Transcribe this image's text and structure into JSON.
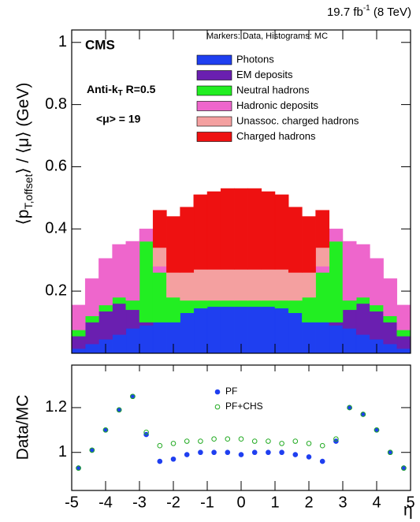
{
  "chart_data": [
    {
      "type": "bar",
      "stacked": true,
      "lumi": "19.7 fb",
      "lumi_exp": "-1",
      "energy": " (8 TeV)",
      "experiment": "CMS",
      "note": "Markers: Data, Histograms: MC",
      "algo": "Anti-k",
      "algo_sub": "T",
      "algo_param": " R=0.5",
      "pileup": "<μ> = 19",
      "ylabel_main": "⟨p",
      "ylabel_sub": "T,offset",
      "ylabel_rest": "⟩ / ⟨μ⟩ (GeV)",
      "x": [
        -4.8,
        -4.4,
        -4.0,
        -3.6,
        -3.2,
        -2.8,
        -2.4,
        -2.0,
        -1.6,
        -1.2,
        -0.8,
        -0.4,
        0,
        0.4,
        0.8,
        1.2,
        1.6,
        2.0,
        2.4,
        2.8,
        3.2,
        3.6,
        4.0,
        4.4,
        4.8
      ],
      "xlim": [
        -5,
        5
      ],
      "ylim": [
        0,
        1.04
      ],
      "yticks": [
        0.2,
        0.4,
        0.6,
        0.8,
        1
      ],
      "series": [
        {
          "name": "Photons",
          "color": "#1f3ff0",
          "values": [
            0.015,
            0.03,
            0.045,
            0.06,
            0.08,
            0.09,
            0.1,
            0.1,
            0.13,
            0.145,
            0.15,
            0.15,
            0.15,
            0.15,
            0.15,
            0.145,
            0.13,
            0.1,
            0.1,
            0.09,
            0.08,
            0.06,
            0.045,
            0.03,
            0.015
          ]
        },
        {
          "name": "EM deposits",
          "color": "#6a1fb0",
          "values": [
            0.04,
            0.07,
            0.09,
            0.1,
            0.06,
            0.01,
            0,
            0,
            0,
            0,
            0,
            0,
            0,
            0,
            0,
            0,
            0,
            0,
            0,
            0.01,
            0.06,
            0.1,
            0.09,
            0.07,
            0.04
          ]
        },
        {
          "name": "Neutral hadrons",
          "color": "#22ee22",
          "values": [
            0.02,
            0.02,
            0.02,
            0.02,
            0.03,
            0.26,
            0.16,
            0.08,
            0.04,
            0.025,
            0.02,
            0.02,
            0.02,
            0.02,
            0.02,
            0.025,
            0.04,
            0.08,
            0.16,
            0.26,
            0.03,
            0.02,
            0.02,
            0.02,
            0.02
          ]
        },
        {
          "name": "Hadronic deposits",
          "color": "#ee66cc",
          "values": [
            0.08,
            0.12,
            0.15,
            0.17,
            0.19,
            0.04,
            0.02,
            0,
            0,
            0,
            0,
            0,
            0,
            0,
            0,
            0,
            0,
            0,
            0.02,
            0.04,
            0.19,
            0.17,
            0.15,
            0.12,
            0.08
          ]
        },
        {
          "name": "Unassoc. charged hadrons",
          "color": "#f4a0a0",
          "values": [
            0,
            0,
            0,
            0,
            0,
            0,
            0.06,
            0.08,
            0.09,
            0.1,
            0.1,
            0.1,
            0.1,
            0.1,
            0.1,
            0.1,
            0.09,
            0.08,
            0.06,
            0,
            0,
            0,
            0,
            0,
            0
          ]
        },
        {
          "name": "Charged hadrons",
          "color": "#ee1111",
          "values": [
            0,
            0,
            0,
            0,
            0,
            0,
            0.12,
            0.18,
            0.21,
            0.24,
            0.25,
            0.26,
            0.26,
            0.26,
            0.25,
            0.24,
            0.21,
            0.18,
            0.12,
            0,
            0,
            0,
            0,
            0,
            0
          ]
        }
      ]
    },
    {
      "type": "scatter",
      "ylabel": "Data/MC",
      "xlabel": "η",
      "x": [
        -4.8,
        -4.4,
        -4.0,
        -3.6,
        -3.2,
        -2.8,
        -2.4,
        -2.0,
        -1.6,
        -1.2,
        -0.8,
        -0.4,
        0,
        0.4,
        0.8,
        1.2,
        1.6,
        2.0,
        2.4,
        2.8,
        3.2,
        3.6,
        4.0,
        4.4,
        4.8
      ],
      "xlim": [
        -5,
        5
      ],
      "xticks": [
        -5,
        -4,
        -3,
        -2,
        -1,
        0,
        1,
        2,
        3,
        4,
        5
      ],
      "ylim": [
        0.83,
        1.39
      ],
      "yticks": [
        1,
        1.2
      ],
      "series": [
        {
          "name": "PF",
          "color": "#1f3ff0",
          "filled": true,
          "values": [
            0.93,
            1.01,
            1.1,
            1.19,
            1.25,
            1.08,
            0.96,
            0.97,
            0.99,
            1.0,
            1.0,
            1.0,
            0.99,
            1.0,
            1.0,
            1.0,
            0.99,
            0.98,
            0.96,
            1.05,
            1.2,
            1.17,
            1.1,
            1.0,
            0.93
          ]
        },
        {
          "name": "PF+CHS",
          "color": "#22aa22",
          "filled": false,
          "values": [
            0.93,
            1.01,
            1.1,
            1.19,
            1.25,
            1.09,
            1.03,
            1.04,
            1.05,
            1.05,
            1.06,
            1.06,
            1.06,
            1.05,
            1.05,
            1.04,
            1.05,
            1.04,
            1.03,
            1.06,
            1.2,
            1.17,
            1.1,
            1.0,
            0.93
          ]
        }
      ]
    }
  ]
}
